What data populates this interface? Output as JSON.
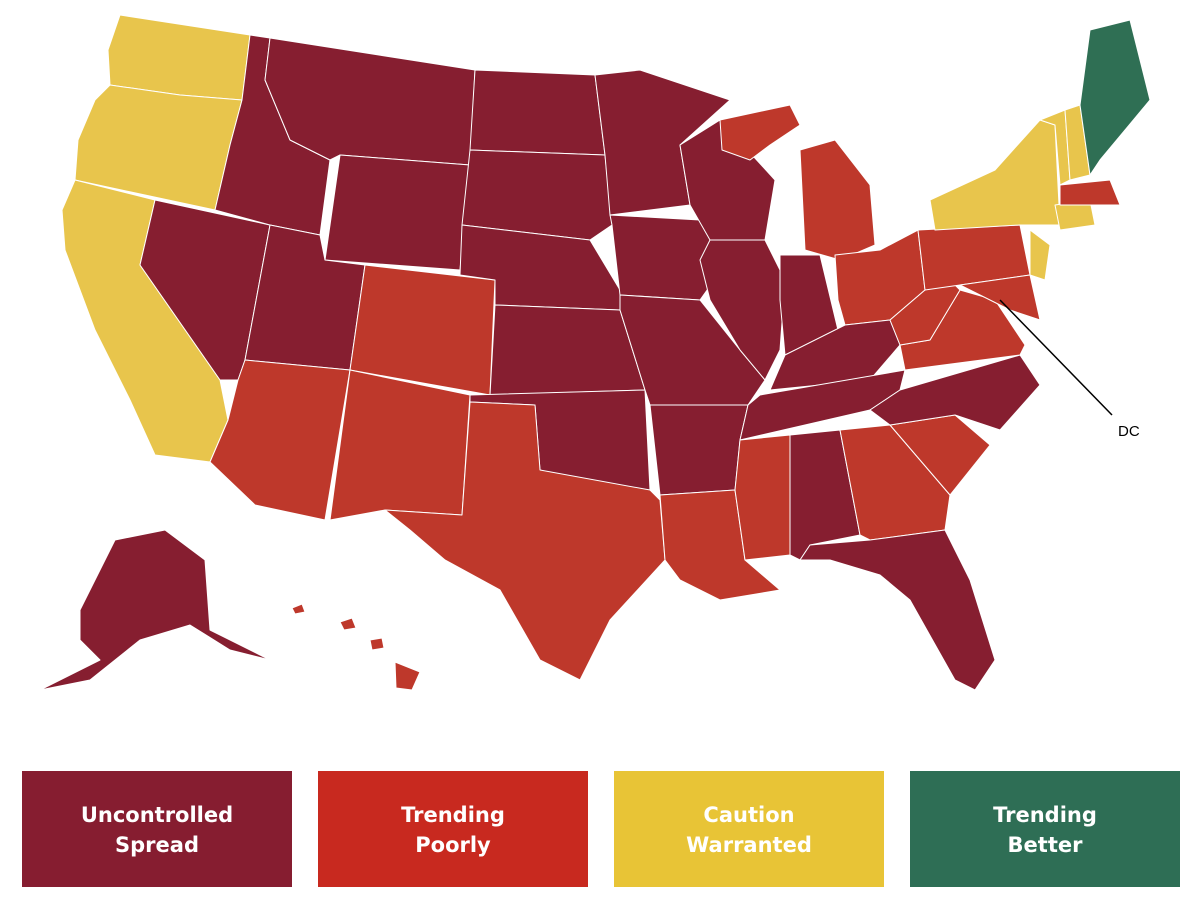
{
  "map": {
    "annotation": "DC"
  },
  "legend": [
    {
      "lines": [
        "Uncontrolled",
        "Spread"
      ],
      "color": "#861d30"
    },
    {
      "lines": [
        "Trending",
        "Poorly"
      ],
      "color": "#c8291f"
    },
    {
      "lines": [
        "Caution",
        "Warranted"
      ],
      "color": "#e8c436"
    },
    {
      "lines": [
        "Trending",
        "Better"
      ],
      "color": "#2e6e55"
    }
  ],
  "state_colors": [
    "#861e30",
    "#be382b",
    "#e8c54c",
    "#2f6f54"
  ]
}
